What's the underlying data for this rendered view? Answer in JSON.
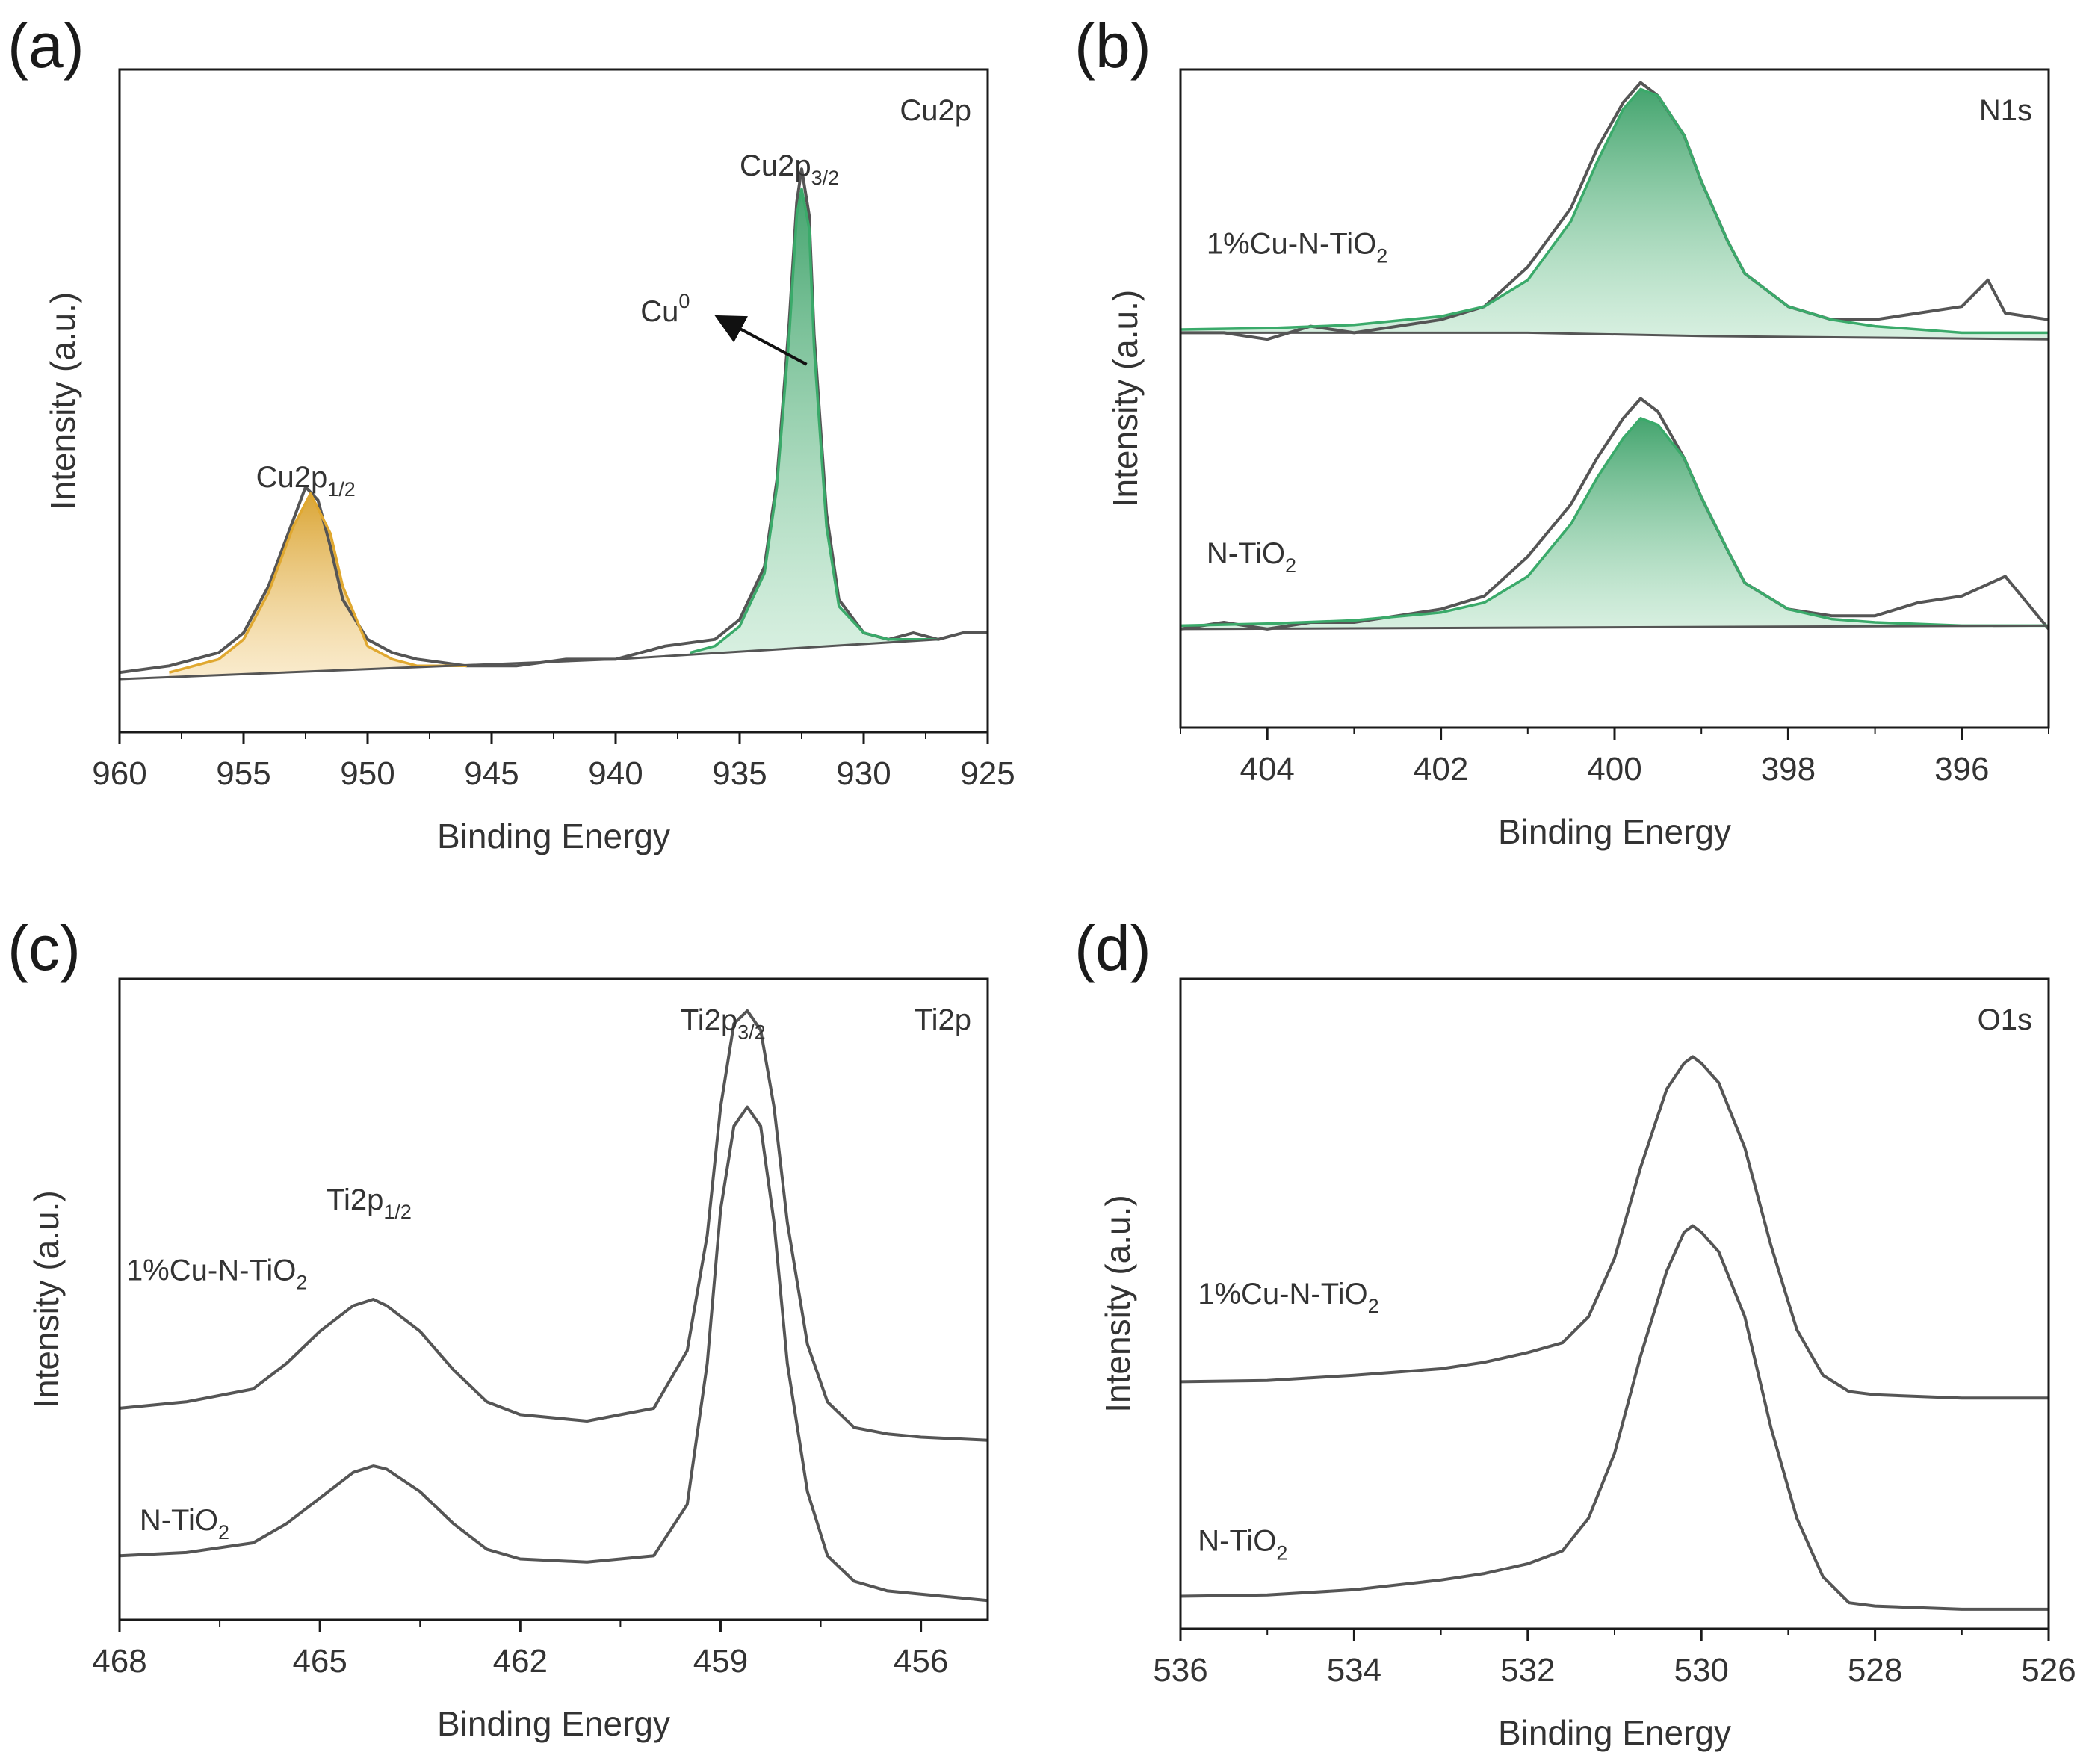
{
  "chart_data": [
    {
      "panel_label": "(a)",
      "type": "line",
      "corner_label": "Cu2p",
      "xlabel": "Binding Energy",
      "ylabel": "Intensity (a.u.)",
      "xlim": [
        960,
        925
      ],
      "x_reversed": true,
      "xticks": [
        960,
        955,
        950,
        945,
        940,
        935,
        930,
        925
      ],
      "ylim": [
        0,
        1.0
      ],
      "annotations": [
        {
          "text": "Cu2p",
          "sub": "1/2",
          "x": 954.5,
          "y": 0.37
        },
        {
          "text": "Cu2p",
          "sub": "3/2",
          "x": 935.0,
          "y": 0.84
        },
        {
          "text": "Cu",
          "sup": "0",
          "x": 939.0,
          "y": 0.62,
          "arrow_to": [
            932.5,
            0.55
          ],
          "arrow_from": [
            937.2,
            0.61
          ]
        }
      ],
      "series": [
        {
          "role": "raw",
          "color": "#555555",
          "x": [
            960,
            958,
            956,
            955,
            954,
            953,
            952.5,
            952,
            951.5,
            951,
            950,
            949,
            948,
            946,
            944,
            942,
            940,
            938,
            936,
            935,
            934,
            933.5,
            933,
            932.7,
            932.5,
            932.2,
            932,
            931.5,
            931,
            930,
            929,
            928,
            927,
            926,
            925
          ],
          "y": [
            0.09,
            0.1,
            0.12,
            0.15,
            0.22,
            0.32,
            0.37,
            0.35,
            0.28,
            0.2,
            0.14,
            0.12,
            0.11,
            0.1,
            0.1,
            0.11,
            0.11,
            0.13,
            0.14,
            0.17,
            0.25,
            0.38,
            0.62,
            0.8,
            0.85,
            0.78,
            0.6,
            0.33,
            0.2,
            0.15,
            0.14,
            0.15,
            0.14,
            0.15,
            0.15
          ]
        },
        {
          "role": "fit",
          "name": "",
          "color": "#e0a830",
          "x": [
            958,
            956,
            955,
            954,
            953,
            952.3,
            951.5,
            951,
            950,
            949,
            948,
            946
          ],
          "y": [
            0.09,
            0.11,
            0.14,
            0.21,
            0.31,
            0.36,
            0.3,
            0.22,
            0.13,
            0.11,
            0.1,
            0.1
          ]
        },
        {
          "role": "fit",
          "name": "",
          "color": "#3aaa6a",
          "x": [
            937,
            936,
            935,
            934,
            933.5,
            933,
            932.7,
            932.5,
            932.2,
            932,
            931.5,
            931,
            930,
            929,
            928,
            927
          ],
          "y": [
            0.12,
            0.13,
            0.16,
            0.24,
            0.37,
            0.6,
            0.78,
            0.82,
            0.76,
            0.58,
            0.31,
            0.19,
            0.15,
            0.14,
            0.14,
            0.14
          ]
        },
        {
          "role": "background",
          "color": "#555555",
          "x": [
            960,
            940,
            927
          ],
          "y": [
            0.08,
            0.11,
            0.14
          ]
        }
      ]
    },
    {
      "panel_label": "(b)",
      "type": "line",
      "corner_label": "N1s",
      "xlabel": "Binding Energy",
      "ylabel": "Intensity (a.u.)",
      "xlim": [
        405,
        395
      ],
      "x_reversed": true,
      "xticks": [
        404,
        402,
        400,
        398,
        396
      ],
      "ylim": [
        0,
        1.0
      ],
      "annotations": [
        {
          "text": "1%Cu-N-TiO",
          "sub": "2",
          "x": 404.7,
          "y": 0.72
        },
        {
          "text": "N-TiO",
          "sub": "2",
          "x": 404.7,
          "y": 0.25
        }
      ],
      "series": [
        {
          "name": "1%Cu-N-TiO2",
          "role": "raw",
          "color": "#555555",
          "x": [
            405,
            404.5,
            404,
            403.5,
            403,
            402.5,
            402,
            401.5,
            401,
            400.5,
            400.2,
            399.9,
            399.7,
            399.5,
            399.2,
            399,
            398.7,
            398.5,
            398,
            397.5,
            397,
            396.5,
            396,
            395.7,
            395.5,
            395
          ],
          "y": [
            0.6,
            0.6,
            0.59,
            0.61,
            0.6,
            0.61,
            0.62,
            0.64,
            0.7,
            0.79,
            0.88,
            0.95,
            0.98,
            0.96,
            0.9,
            0.83,
            0.74,
            0.69,
            0.64,
            0.62,
            0.62,
            0.63,
            0.64,
            0.68,
            0.63,
            0.62
          ]
        },
        {
          "name": "1%Cu-N-TiO2",
          "role": "fit",
          "color": "#3aaa6a",
          "x": [
            405,
            404,
            403,
            402,
            401.5,
            401,
            400.5,
            400.2,
            399.9,
            399.7,
            399.5,
            399.2,
            399,
            398.7,
            398.5,
            398,
            397.5,
            397,
            396,
            395
          ],
          "y": [
            0.605,
            0.607,
            0.612,
            0.625,
            0.64,
            0.68,
            0.77,
            0.86,
            0.94,
            0.97,
            0.96,
            0.9,
            0.83,
            0.74,
            0.69,
            0.64,
            0.62,
            0.61,
            0.6,
            0.6
          ]
        },
        {
          "name": "1%Cu-N-TiO2",
          "role": "background",
          "color": "#555555",
          "x": [
            405,
            401,
            399,
            395
          ],
          "y": [
            0.6,
            0.6,
            0.595,
            0.59
          ]
        },
        {
          "name": "N-TiO2",
          "role": "raw",
          "color": "#555555",
          "x": [
            405,
            404.5,
            404,
            403.5,
            403,
            402.5,
            402,
            401.5,
            401,
            400.5,
            400.2,
            399.9,
            399.7,
            399.5,
            399.2,
            399,
            398.7,
            398.5,
            398,
            397.5,
            397,
            396.5,
            396,
            395.5,
            395
          ],
          "y": [
            0.15,
            0.16,
            0.15,
            0.16,
            0.16,
            0.17,
            0.18,
            0.2,
            0.26,
            0.34,
            0.41,
            0.47,
            0.5,
            0.48,
            0.41,
            0.35,
            0.27,
            0.22,
            0.18,
            0.17,
            0.17,
            0.19,
            0.2,
            0.23,
            0.15
          ]
        },
        {
          "name": "N-TiO2",
          "role": "fit",
          "color": "#3aaa6a",
          "x": [
            405,
            404,
            403,
            402,
            401.5,
            401,
            400.5,
            400.2,
            399.9,
            399.7,
            399.5,
            399.2,
            399,
            398.7,
            398.5,
            398,
            397.5,
            397,
            396,
            395
          ],
          "y": [
            0.155,
            0.158,
            0.163,
            0.175,
            0.19,
            0.23,
            0.31,
            0.38,
            0.44,
            0.47,
            0.46,
            0.41,
            0.35,
            0.27,
            0.22,
            0.18,
            0.165,
            0.16,
            0.155,
            0.155
          ]
        },
        {
          "name": "N-TiO2",
          "role": "background",
          "color": "#555555",
          "x": [
            405,
            395
          ],
          "y": [
            0.15,
            0.155
          ]
        }
      ]
    },
    {
      "panel_label": "(c)",
      "type": "line",
      "corner_label": "Ti2p",
      "xlabel": "Binding Energy",
      "ylabel": "Intensity (a.u.)",
      "xlim": [
        468,
        455
      ],
      "x_reversed": true,
      "xticks": [
        468,
        465,
        462,
        459,
        456
      ],
      "ylim": [
        0,
        1.0
      ],
      "annotations": [
        {
          "text": "Ti2p",
          "sub": "1/2",
          "x": 464.9,
          "y": 0.64
        },
        {
          "text": "Ti2p",
          "sub": "3/2",
          "x": 459.6,
          "y": 0.92
        },
        {
          "text": "1%Cu-N-TiO",
          "sub": "2",
          "x": 467.9,
          "y": 0.53
        },
        {
          "text": "N-TiO",
          "sub": "2",
          "x": 467.7,
          "y": 0.14
        }
      ],
      "series": [
        {
          "name": "1%Cu-N-TiO2",
          "color": "#555555",
          "x": [
            468,
            467,
            466,
            465.5,
            465,
            464.5,
            464.2,
            464,
            463.5,
            463,
            462.5,
            462,
            461,
            460,
            459.5,
            459.2,
            459,
            458.8,
            458.6,
            458.4,
            458.2,
            458,
            457.7,
            457.4,
            457,
            456.5,
            456,
            455
          ],
          "y": [
            0.33,
            0.34,
            0.36,
            0.4,
            0.45,
            0.49,
            0.5,
            0.49,
            0.45,
            0.39,
            0.34,
            0.32,
            0.31,
            0.33,
            0.42,
            0.6,
            0.8,
            0.93,
            0.95,
            0.92,
            0.8,
            0.62,
            0.43,
            0.34,
            0.3,
            0.29,
            0.285,
            0.28
          ]
        },
        {
          "name": "N-TiO2",
          "color": "#555555",
          "x": [
            468,
            467,
            466,
            465.5,
            465,
            464.5,
            464.2,
            464,
            463.5,
            463,
            462.5,
            462,
            461,
            460,
            459.5,
            459.2,
            459,
            458.8,
            458.6,
            458.4,
            458.2,
            458,
            457.7,
            457.4,
            457,
            456.5,
            456,
            455
          ],
          "y": [
            0.1,
            0.105,
            0.12,
            0.15,
            0.19,
            0.23,
            0.24,
            0.235,
            0.2,
            0.15,
            0.11,
            0.095,
            0.09,
            0.1,
            0.18,
            0.4,
            0.64,
            0.77,
            0.8,
            0.77,
            0.62,
            0.4,
            0.2,
            0.1,
            0.06,
            0.045,
            0.04,
            0.03
          ]
        }
      ]
    },
    {
      "panel_label": "(d)",
      "type": "line",
      "corner_label": "O1s",
      "xlabel": "Binding Energy",
      "ylabel": "Intensity (a.u.)",
      "xlim": [
        536,
        526
      ],
      "x_reversed": true,
      "xticks": [
        536,
        534,
        532,
        530,
        528,
        526
      ],
      "ylim": [
        0,
        1.0
      ],
      "annotations": [
        {
          "text": "1%Cu-N-TiO",
          "sub": "2",
          "x": 535.8,
          "y": 0.5
        },
        {
          "text": "N-TiO",
          "sub": "2",
          "x": 535.8,
          "y": 0.12
        }
      ],
      "series": [
        {
          "name": "1%Cu-N-TiO2",
          "color": "#555555",
          "x": [
            536,
            535,
            534,
            533,
            532.5,
            532,
            531.6,
            531.3,
            531,
            530.7,
            530.4,
            530.2,
            530.1,
            530,
            529.8,
            529.5,
            529.2,
            528.9,
            528.6,
            528.3,
            528,
            527,
            526
          ],
          "y": [
            0.38,
            0.382,
            0.39,
            0.4,
            0.41,
            0.425,
            0.44,
            0.48,
            0.57,
            0.71,
            0.83,
            0.87,
            0.88,
            0.87,
            0.84,
            0.74,
            0.59,
            0.46,
            0.39,
            0.365,
            0.36,
            0.355,
            0.355
          ]
        },
        {
          "name": "N-TiO2",
          "color": "#555555",
          "x": [
            536,
            535,
            534,
            533,
            532.5,
            532,
            531.6,
            531.3,
            531,
            530.7,
            530.4,
            530.2,
            530.1,
            530,
            529.8,
            529.5,
            529.2,
            528.9,
            528.6,
            528.3,
            528,
            527,
            526
          ],
          "y": [
            0.05,
            0.052,
            0.06,
            0.075,
            0.085,
            0.1,
            0.12,
            0.17,
            0.27,
            0.42,
            0.55,
            0.61,
            0.62,
            0.61,
            0.58,
            0.48,
            0.31,
            0.17,
            0.08,
            0.04,
            0.035,
            0.03,
            0.03
          ]
        }
      ]
    }
  ]
}
